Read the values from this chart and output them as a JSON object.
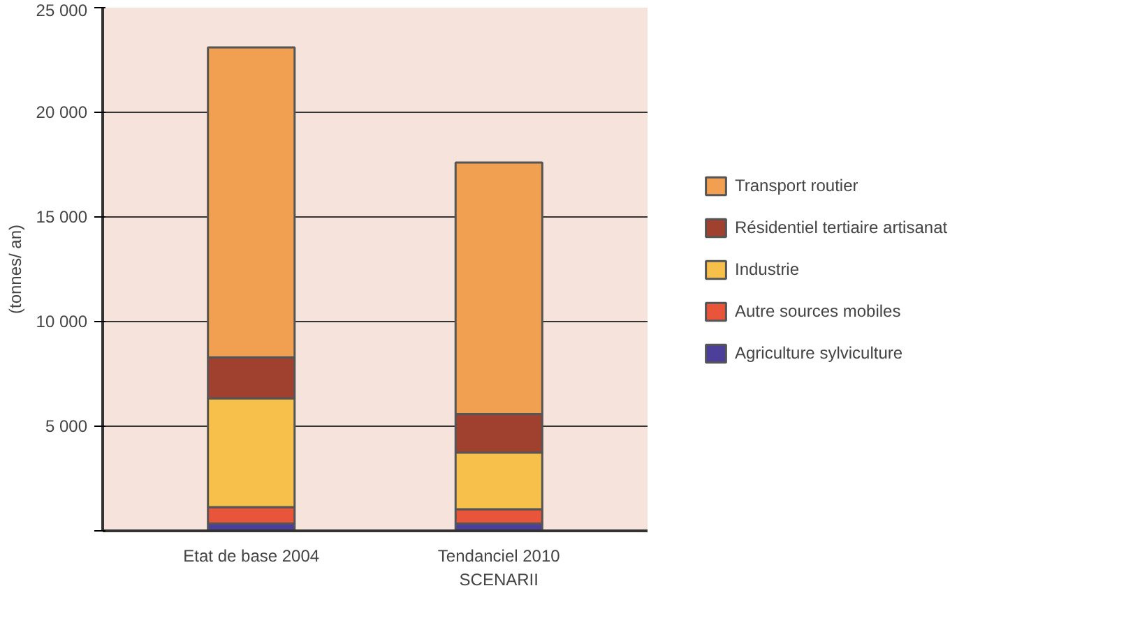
{
  "chart_data": {
    "type": "bar",
    "stacked": true,
    "ylabel": "(tonnes/ an)",
    "categories": [
      "Etat de base 2004",
      "Tendanciel 2010\nSCENARII"
    ],
    "series": [
      {
        "name": "Agriculture sylviculture",
        "color": "#4b3f9a",
        "values": [
          350,
          350
        ]
      },
      {
        "name": "Autre sources mobiles",
        "color": "#e8553a",
        "values": [
          780,
          680
        ]
      },
      {
        "name": "Industrie",
        "color": "#f7c04a",
        "values": [
          5200,
          2710
        ]
      },
      {
        "name": "Résidentiel tertiaire artisanat",
        "color": "#a0402f",
        "values": [
          1960,
          1840
        ]
      },
      {
        "name": "Transport routier",
        "color": "#f0a050",
        "values": [
          14810,
          12020
        ]
      }
    ],
    "ylim": [
      0,
      25000
    ],
    "yticks": [
      {
        "value": 0,
        "label": null
      },
      {
        "value": 5000,
        "label": "5 000"
      },
      {
        "value": 10000,
        "label": "10 000"
      },
      {
        "value": 15000,
        "label": "15 000"
      },
      {
        "value": 20000,
        "label": "20 000"
      },
      {
        "value": 25000,
        "label": "25 000"
      }
    ],
    "grid": "y",
    "legend": "right"
  }
}
